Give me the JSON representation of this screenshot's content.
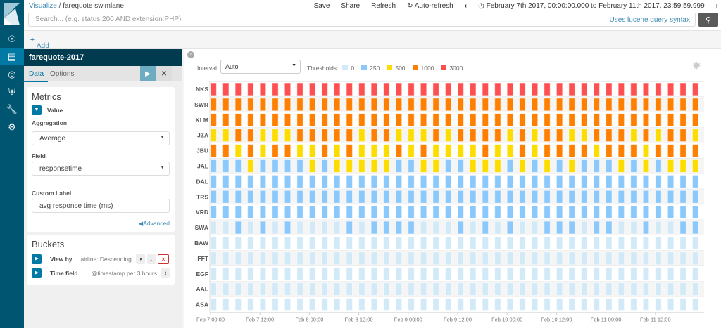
{
  "breadcrumb": {
    "parent": "Visualize",
    "current": "farequote swimlane"
  },
  "menu": {
    "save": "Save",
    "share": "Share",
    "refresh": "Refresh",
    "auto_refresh": "Auto-refresh",
    "time_range": "February 7th 2017, 00:00:00.000 to February 11th 2017, 23:59:59.999"
  },
  "search": {
    "placeholder": "Search... (e.g. status:200 AND extension:PHP)",
    "value": "",
    "syntax_link": "Uses lucene query syntax"
  },
  "filter": {
    "add_label": "Add a filter"
  },
  "nav": {
    "items": [
      "discover",
      "visualize",
      "dashboard",
      "timelion",
      "dev-tools",
      "management"
    ],
    "active": "visualize"
  },
  "panel": {
    "index": "farequote-2017",
    "tabs": [
      "Data",
      "Options"
    ],
    "metrics": {
      "title": "Metrics",
      "value_label": "Value",
      "aggregation_label": "Aggregation",
      "aggregation": "Average",
      "field_label": "Field",
      "field": "responsetime",
      "custom_label_label": "Custom Label",
      "custom_label": "avg response time (ms)",
      "advanced": "Advanced"
    },
    "buckets": {
      "title": "Buckets",
      "view_by_label": "View by",
      "view_by": "airline: Descending",
      "time_field_label": "Time field",
      "time_field": "@timestamp per 3 hours"
    }
  },
  "controls": {
    "interval_label": "Interval:",
    "interval": "Auto",
    "thresholds_label": "Thresholds:"
  },
  "colors": {
    "t0": "#d2e9f7",
    "t250": "#8bc8fb",
    "t500": "#fddd00",
    "t1000": "#ff8000",
    "t3000": "#fe5050"
  },
  "chart_data": {
    "type": "heatmap",
    "xlabel": "",
    "ylabel": "",
    "thresholds": [
      {
        "value": "0",
        "color": "#d2e9f7"
      },
      {
        "value": "250",
        "color": "#8bc8fb"
      },
      {
        "value": "500",
        "color": "#fddd00"
      },
      {
        "value": "1000",
        "color": "#ff8000"
      },
      {
        "value": "3000",
        "color": "#fe5050"
      }
    ],
    "x_start": "2017-02-07T00:00",
    "bucket_hours": 3,
    "x_ticks": [
      "Feb 7 00:00",
      "Feb 7 12:00",
      "Feb 8 00:00",
      "Feb 8 12:00",
      "Feb 9 00:00",
      "Feb 9 12:00",
      "Feb 10 00:00",
      "Feb 10 12:00",
      "Feb 11 00:00",
      "Feb 11 12:00"
    ],
    "rows": [
      {
        "name": "NKS",
        "values": [
          3000,
          3000,
          3000,
          3000,
          3000,
          3000,
          3000,
          3000,
          3000,
          3000,
          3000,
          3000,
          3000,
          3000,
          3000,
          3000,
          3000,
          3000,
          3000,
          3000,
          3000,
          3000,
          3000,
          3000,
          3000,
          3000,
          3000,
          3000,
          3000,
          3000,
          3000,
          3000,
          3000,
          3000,
          3000,
          3000,
          3000,
          3000,
          3000,
          3000
        ]
      },
      {
        "name": "SWR",
        "values": [
          1000,
          1000,
          1000,
          1000,
          1000,
          1000,
          1000,
          1000,
          1000,
          1000,
          1000,
          1000,
          1000,
          1000,
          1000,
          1000,
          1000,
          1000,
          1000,
          1000,
          1000,
          1000,
          1000,
          1000,
          1000,
          1000,
          1000,
          1000,
          1000,
          1000,
          1000,
          1000,
          1000,
          1000,
          1000,
          1000,
          1000,
          1000,
          1000,
          1000
        ]
      },
      {
        "name": "KLM",
        "values": [
          1000,
          1000,
          1000,
          1000,
          1000,
          1000,
          1000,
          1000,
          1000,
          1000,
          1000,
          1000,
          1000,
          1000,
          1000,
          1000,
          1000,
          1000,
          1000,
          1000,
          1000,
          1000,
          1000,
          1000,
          1000,
          1000,
          1000,
          1000,
          1000,
          1000,
          1000,
          1000,
          1000,
          1000,
          1000,
          1000,
          1000,
          1000,
          1000,
          1000
        ]
      },
      {
        "name": "JZA",
        "values": [
          500,
          500,
          1000,
          1000,
          500,
          500,
          500,
          1000,
          1000,
          1000,
          1000,
          1000,
          500,
          1000,
          1000,
          500,
          500,
          500,
          1000,
          500,
          1000,
          1000,
          1000,
          1000,
          500,
          1000,
          500,
          1000,
          1000,
          500,
          500,
          1000,
          1000,
          1000,
          500,
          1000,
          500,
          1000,
          1000,
          500
        ]
      },
      {
        "name": "JBU",
        "values": [
          1000,
          1000,
          500,
          1000,
          500,
          1000,
          1000,
          500,
          500,
          1000,
          500,
          1000,
          500,
          500,
          500,
          1000,
          500,
          1000,
          500,
          500,
          500,
          500,
          1000,
          500,
          500,
          1000,
          500,
          1000,
          1000,
          1000,
          1000,
          500,
          1000,
          1000,
          1000,
          500,
          1000,
          1000,
          1000,
          1000
        ]
      },
      {
        "name": "JAL",
        "values": [
          250,
          250,
          250,
          500,
          250,
          250,
          250,
          250,
          500,
          250,
          500,
          500,
          500,
          500,
          500,
          250,
          250,
          500,
          500,
          250,
          250,
          500,
          500,
          500,
          250,
          500,
          250,
          500,
          250,
          500,
          250,
          250,
          250,
          500,
          250,
          500,
          250,
          500,
          500,
          500
        ]
      },
      {
        "name": "DAL",
        "values": [
          250,
          250,
          250,
          250,
          250,
          250,
          250,
          250,
          250,
          250,
          250,
          250,
          250,
          250,
          250,
          250,
          250,
          250,
          250,
          250,
          250,
          250,
          250,
          250,
          250,
          250,
          250,
          250,
          250,
          250,
          250,
          250,
          250,
          250,
          250,
          250,
          250,
          250,
          250,
          250
        ]
      },
      {
        "name": "TRS",
        "values": [
          250,
          250,
          250,
          250,
          250,
          250,
          250,
          250,
          250,
          250,
          250,
          250,
          250,
          250,
          250,
          250,
          250,
          250,
          250,
          250,
          250,
          250,
          250,
          250,
          250,
          250,
          250,
          250,
          250,
          250,
          250,
          250,
          250,
          250,
          250,
          250,
          250,
          250,
          250,
          250
        ]
      },
      {
        "name": "VRD",
        "values": [
          250,
          250,
          250,
          250,
          250,
          250,
          250,
          250,
          250,
          250,
          250,
          250,
          250,
          250,
          250,
          250,
          250,
          250,
          250,
          250,
          250,
          250,
          250,
          250,
          250,
          250,
          250,
          250,
          250,
          250,
          250,
          250,
          250,
          250,
          250,
          250,
          250,
          250,
          250,
          250
        ]
      },
      {
        "name": "SWA",
        "values": [
          0,
          0,
          250,
          0,
          250,
          0,
          250,
          0,
          0,
          0,
          0,
          250,
          0,
          250,
          250,
          250,
          250,
          0,
          0,
          0,
          250,
          0,
          250,
          0,
          250,
          0,
          0,
          250,
          250,
          250,
          0,
          250,
          250,
          0,
          0,
          250,
          0,
          0,
          250,
          250
        ]
      },
      {
        "name": "BAW",
        "values": [
          0,
          0,
          0,
          0,
          0,
          0,
          0,
          0,
          0,
          0,
          0,
          0,
          0,
          0,
          0,
          0,
          0,
          0,
          0,
          0,
          0,
          0,
          0,
          0,
          0,
          0,
          0,
          0,
          0,
          0,
          0,
          0,
          0,
          0,
          0,
          0,
          0,
          0,
          0,
          0
        ]
      },
      {
        "name": "FFT",
        "values": [
          0,
          0,
          0,
          0,
          0,
          0,
          0,
          0,
          0,
          0,
          0,
          0,
          0,
          0,
          0,
          0,
          0,
          0,
          0,
          0,
          0,
          0,
          0,
          0,
          0,
          0,
          0,
          0,
          0,
          0,
          0,
          0,
          0,
          0,
          0,
          0,
          0,
          0,
          0,
          0
        ]
      },
      {
        "name": "EGF",
        "values": [
          0,
          0,
          0,
          0,
          0,
          0,
          0,
          0,
          0,
          0,
          0,
          0,
          0,
          0,
          0,
          0,
          0,
          0,
          0,
          0,
          0,
          0,
          0,
          0,
          0,
          0,
          0,
          0,
          0,
          0,
          0,
          0,
          0,
          0,
          0,
          0,
          0,
          0,
          0,
          0
        ]
      },
      {
        "name": "AAL",
        "values": [
          0,
          0,
          0,
          0,
          0,
          0,
          0,
          0,
          0,
          0,
          0,
          0,
          0,
          0,
          0,
          0,
          0,
          0,
          0,
          0,
          0,
          0,
          0,
          0,
          0,
          0,
          0,
          0,
          0,
          0,
          0,
          0,
          0,
          0,
          0,
          0,
          0,
          0,
          0,
          0
        ]
      },
      {
        "name": "ASA",
        "values": [
          0,
          0,
          0,
          0,
          0,
          0,
          0,
          0,
          0,
          0,
          0,
          0,
          0,
          0,
          0,
          0,
          0,
          0,
          0,
          0,
          0,
          0,
          0,
          0,
          0,
          0,
          0,
          0,
          0,
          0,
          0,
          0,
          0,
          0,
          0,
          0,
          0,
          0,
          0,
          0
        ]
      }
    ]
  }
}
